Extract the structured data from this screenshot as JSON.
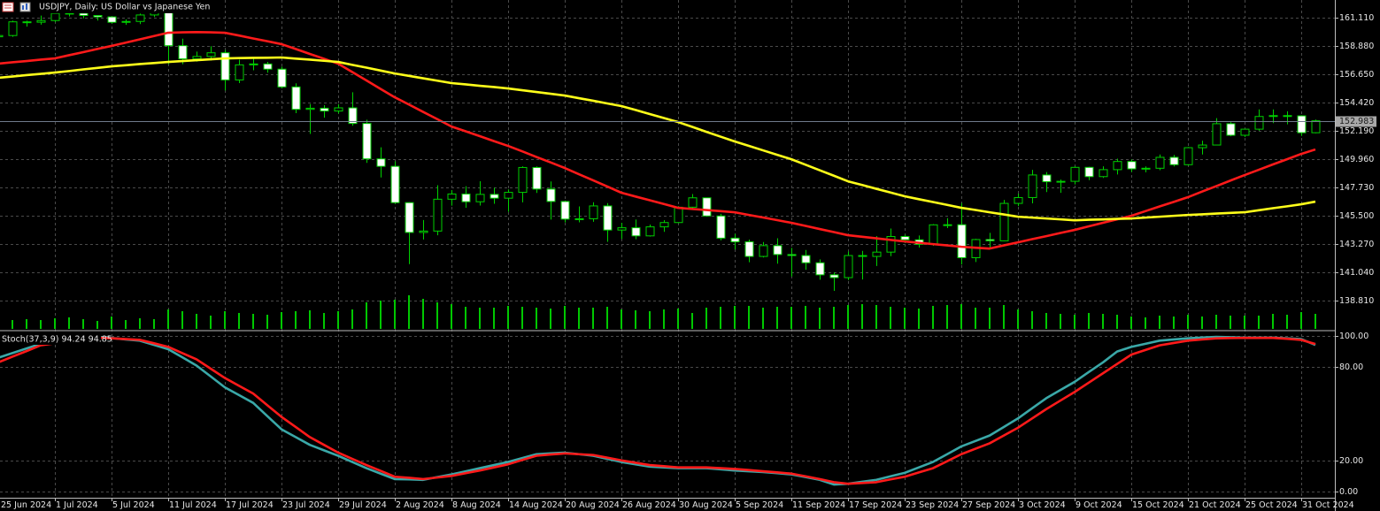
{
  "chart_data": [
    {
      "type": "candlestick",
      "title": "USDJPY, Daily:  US Dollar vs Japanese Yen",
      "categories": [
        "25 Jun 2024",
        null,
        null,
        null,
        "1 Jul 2024",
        null,
        null,
        null,
        "5 Jul 2024",
        null,
        null,
        null,
        "11 Jul 2024",
        null,
        null,
        null,
        "17 Jul 2024",
        null,
        null,
        null,
        "23 Jul 2024",
        null,
        null,
        null,
        "29 Jul 2024",
        null,
        null,
        null,
        "2 Aug 2024",
        null,
        null,
        null,
        "8 Aug 2024",
        null,
        null,
        null,
        "14 Aug 2024",
        null,
        null,
        null,
        "20 Aug 2024",
        null,
        null,
        null,
        "26 Aug 2024",
        null,
        null,
        null,
        "30 Aug 2024",
        null,
        null,
        null,
        "5 Sep 2024",
        null,
        null,
        null,
        "11 Sep 2024",
        null,
        null,
        null,
        "17 Sep 2024",
        null,
        null,
        null,
        "23 Sep 2024",
        null,
        null,
        null,
        "27 Sep 2024",
        null,
        null,
        null,
        "3 Oct 2024",
        null,
        null,
        null,
        "9 Oct 2024",
        null,
        null,
        null,
        "15 Oct 2024",
        null,
        null,
        null,
        "21 Oct 2024",
        null,
        null,
        null,
        "25 Oct 2024",
        null,
        null,
        null,
        "31 Oct 2024",
        null
      ],
      "open": [
        159.6,
        159.7,
        160.78,
        160.75,
        160.88,
        161.45,
        161.46,
        161.28,
        161.17,
        160.74,
        160.81,
        161.32,
        161.67,
        158.9,
        157.86,
        158.05,
        158.34,
        156.2,
        157.39,
        157.46,
        157.05,
        155.65,
        153.88,
        153.97,
        153.75,
        154.0,
        152.77,
        149.98,
        149.39,
        146.53,
        144.18,
        144.29,
        146.8,
        147.21,
        146.6,
        147.18,
        146.88,
        147.34,
        149.3,
        147.6,
        146.62,
        145.23,
        145.26,
        146.27,
        144.37,
        144.55,
        143.91,
        144.62,
        144.96,
        146.17,
        146.91,
        145.48,
        143.73,
        143.44,
        142.29,
        143.14,
        142.44,
        142.36,
        141.79,
        140.84,
        140.62,
        142.36,
        142.29,
        142.63,
        143.86,
        143.6,
        143.24,
        144.78,
        144.79,
        142.19,
        143.62,
        143.52,
        146.47,
        146.93,
        148.71,
        148.18,
        148.21,
        149.31,
        148.58,
        149.13,
        149.77,
        149.19,
        149.24,
        150.1,
        149.52,
        150.86,
        151.07,
        152.75,
        151.84,
        152.32,
        153.32,
        153.39,
        153.37,
        152.04
      ],
      "high": [
        159.95,
        160.87,
        160.87,
        161.27,
        161.72,
        161.74,
        161.75,
        161.3,
        161.21,
        160.98,
        161.43,
        161.95,
        161.8,
        159.45,
        158.43,
        158.86,
        158.56,
        157.8,
        157.87,
        157.62,
        157.25,
        155.93,
        154.3,
        154.21,
        154.29,
        155.23,
        153.07,
        150.89,
        149.78,
        146.56,
        145.16,
        147.9,
        147.52,
        147.82,
        148.22,
        147.7,
        147.57,
        149.39,
        149.38,
        148.2,
        146.69,
        146.23,
        146.56,
        146.49,
        144.94,
        145.2,
        144.8,
        145.15,
        146.26,
        147.21,
        146.93,
        145.65,
        144.07,
        143.62,
        143.43,
        143.72,
        142.96,
        142.8,
        142.06,
        141.03,
        142.68,
        142.73,
        143.9,
        144.49,
        144.0,
        143.94,
        144.84,
        145.31,
        146.49,
        143.68,
        144.15,
        146.74,
        147.24,
        149.11,
        148.94,
        148.35,
        149.4,
        149.36,
        149.39,
        149.99,
        149.93,
        149.38,
        150.32,
        150.29,
        150.92,
        151.41,
        153.19,
        152.88,
        152.36,
        153.88,
        153.88,
        153.73,
        153.42,
        153.08
      ],
      "low": [
        159.26,
        159.6,
        160.4,
        160.56,
        160.77,
        161.2,
        161.05,
        160.88,
        160.64,
        160.54,
        160.6,
        161.16,
        157.44,
        157.44,
        157.64,
        157.73,
        155.37,
        155.95,
        156.96,
        156.77,
        155.53,
        153.58,
        151.94,
        153.22,
        153.56,
        152.59,
        149.66,
        148.51,
        146.43,
        141.68,
        143.63,
        143.96,
        146.29,
        146.13,
        146.3,
        146.44,
        145.8,
        146.55,
        147.29,
        145.19,
        144.97,
        144.98,
        145.02,
        143.44,
        143.67,
        143.64,
        143.85,
        144.23,
        144.91,
        145.95,
        145.42,
        143.56,
        142.84,
        141.83,
        142.21,
        141.72,
        140.71,
        141.24,
        140.46,
        139.58,
        140.43,
        140.47,
        141.54,
        142.31,
        143.34,
        142.99,
        143.13,
        144.52,
        141.65,
        141.85,
        142.99,
        143.5,
        146.26,
        146.47,
        147.36,
        147.3,
        147.96,
        148.3,
        148.48,
        148.75,
        148.95,
        148.92,
        149.09,
        149.38,
        149.45,
        150.32,
        151.07,
        151.76,
        151.7,
        152.2,
        152.8,
        152.7,
        151.79,
        152.0
      ],
      "close": [
        159.7,
        160.78,
        160.75,
        160.88,
        161.45,
        161.46,
        161.28,
        161.17,
        160.74,
        160.81,
        161.32,
        161.67,
        158.9,
        157.86,
        158.05,
        158.34,
        156.2,
        157.39,
        157.46,
        157.05,
        155.65,
        153.88,
        153.97,
        153.75,
        154.0,
        152.77,
        149.98,
        149.39,
        146.53,
        144.18,
        144.29,
        146.8,
        147.21,
        146.6,
        147.18,
        146.88,
        147.34,
        149.3,
        147.6,
        146.62,
        145.23,
        145.26,
        146.27,
        144.37,
        144.55,
        143.91,
        144.62,
        144.96,
        146.17,
        146.91,
        145.48,
        143.73,
        143.44,
        142.29,
        143.14,
        142.44,
        142.36,
        141.79,
        140.84,
        140.62,
        142.36,
        142.29,
        142.63,
        143.86,
        143.6,
        143.24,
        144.78,
        144.79,
        142.19,
        143.62,
        143.52,
        146.47,
        146.93,
        148.71,
        148.18,
        148.21,
        149.31,
        148.58,
        149.13,
        149.77,
        149.19,
        149.24,
        150.1,
        149.52,
        150.86,
        151.07,
        152.75,
        151.84,
        152.32,
        153.32,
        153.39,
        153.37,
        152.04,
        152.98
      ],
      "color": "#00d000",
      "up_color": "#000000",
      "down_color": "#ffffff",
      "series": [
        {
          "color": "#ff1a1a",
          "values": [
            157.48,
            157.59,
            157.69,
            157.8,
            157.9,
            158.15,
            158.39,
            158.64,
            158.88,
            159.14,
            159.4,
            159.66,
            159.92,
            159.95,
            159.97,
            159.95,
            159.92,
            159.7,
            159.47,
            159.25,
            159.02,
            158.64,
            158.25,
            157.87,
            157.48,
            156.82,
            156.16,
            155.49,
            154.83,
            154.26,
            153.68,
            153.11,
            152.53,
            152.15,
            151.77,
            151.38,
            151.0,
            150.57,
            150.13,
            149.7,
            149.26,
            148.77,
            148.29,
            147.8,
            147.31,
            147.01,
            146.72,
            146.42,
            146.12,
            146.03,
            145.95,
            145.86,
            145.77,
            145.56,
            145.36,
            145.15,
            144.94,
            144.7,
            144.45,
            144.21,
            143.96,
            143.84,
            143.72,
            143.59,
            143.47,
            143.37,
            143.26,
            143.16,
            143.05,
            142.98,
            142.91,
            143.16,
            143.4,
            143.65,
            143.89,
            144.14,
            144.38,
            144.66,
            144.94,
            145.21,
            145.49,
            145.86,
            146.23,
            146.59,
            146.96,
            147.4,
            147.83,
            148.27,
            148.7,
            149.12,
            149.54,
            149.95,
            150.37,
            150.72
          ]
        },
        {
          "color": "#ffff1a",
          "values": [
            156.37,
            156.47,
            156.58,
            156.68,
            156.78,
            156.9,
            157.03,
            157.15,
            157.27,
            157.36,
            157.45,
            157.53,
            157.62,
            157.69,
            157.76,
            157.83,
            157.9,
            157.92,
            157.94,
            157.95,
            157.97,
            157.88,
            157.8,
            157.71,
            157.62,
            157.39,
            157.17,
            156.94,
            156.71,
            156.52,
            156.33,
            156.14,
            155.95,
            155.85,
            155.74,
            155.64,
            155.53,
            155.39,
            155.25,
            155.11,
            154.97,
            154.76,
            154.56,
            154.35,
            154.14,
            153.83,
            153.51,
            153.2,
            152.88,
            152.5,
            152.11,
            151.73,
            151.35,
            151.0,
            150.65,
            150.3,
            149.95,
            149.52,
            149.08,
            148.65,
            148.21,
            147.92,
            147.62,
            147.33,
            147.03,
            146.8,
            146.58,
            146.35,
            146.12,
            145.95,
            145.77,
            145.6,
            145.42,
            145.35,
            145.28,
            145.21,
            145.14,
            145.18,
            145.21,
            145.25,
            145.28,
            145.35,
            145.42,
            145.49,
            145.56,
            145.61,
            145.67,
            145.72,
            145.77,
            145.93,
            146.09,
            146.24,
            146.4,
            146.61
          ]
        }
      ],
      "volume": {
        "color": "#00c800",
        "ylim": [
          0,
          372
        ],
        "values": [
          12,
          10,
          11,
          10,
          12,
          13,
          11,
          9,
          14,
          10,
          12,
          11,
          22,
          20,
          17,
          15,
          20,
          18,
          17,
          16,
          19,
          20,
          21,
          18,
          20,
          22,
          30,
          32,
          33,
          38,
          34,
          30,
          28,
          25,
          24,
          24,
          26,
          25,
          24,
          23,
          26,
          24,
          24,
          25,
          22,
          21,
          20,
          22,
          23,
          18,
          24,
          25,
          26,
          26,
          24,
          25,
          25,
          26,
          24,
          25,
          27,
          28,
          27,
          25,
          24,
          23,
          26,
          27,
          28,
          24,
          24,
          27,
          22,
          20,
          18,
          17,
          16,
          18,
          17,
          16,
          14,
          13,
          15,
          14,
          16,
          14,
          16,
          15,
          15,
          15,
          17,
          16,
          19,
          17
        ]
      },
      "last_price": 152.983,
      "ylim": [
        136.58,
        162.5
      ],
      "yticks": [
        {
          "value": 161.11,
          "label": "161.110"
        },
        {
          "value": 158.88,
          "label": "158.880"
        },
        {
          "value": 156.65,
          "label": "156.650"
        },
        {
          "value": 154.42,
          "label": "154.420"
        },
        {
          "value": 152.19,
          "label": "152.190"
        },
        {
          "value": 149.96,
          "label": "149.960"
        },
        {
          "value": 147.73,
          "label": "147.730"
        },
        {
          "value": 145.5,
          "label": "145.500"
        },
        {
          "value": 143.27,
          "label": "143.270"
        },
        {
          "value": 141.04,
          "label": "141.040"
        },
        {
          "value": 138.81,
          "label": "138.810"
        }
      ],
      "grid": true
    },
    {
      "type": "line",
      "title": "Stoch(37,3,9)",
      "series": [
        {
          "color": "#3aa8a8",
          "values": [
            86,
            89,
            92,
            95,
            96.1,
            97.3,
            98.4,
            99.5,
            98.7,
            97.8,
            97,
            94.3,
            91.5,
            86.3,
            81,
            74,
            67,
            62,
            57,
            48.5,
            40,
            35,
            30,
            26.5,
            23,
            19,
            15,
            11.5,
            8,
            7.8,
            7.5,
            9.3,
            11,
            13,
            15,
            17,
            19,
            21.5,
            24,
            24.5,
            25,
            24,
            23,
            21,
            19,
            17.5,
            16,
            15.5,
            15,
            15,
            15,
            14.3,
            13.5,
            13,
            12.5,
            11.8,
            11,
            9.3,
            7.5,
            4.5,
            5,
            6.3,
            7.5,
            9.8,
            12,
            15.5,
            19,
            24,
            29,
            32.5,
            36,
            41.5,
            47,
            53.5,
            60,
            65.3,
            70.5,
            76.8,
            83,
            90,
            93,
            95,
            97,
            97.8,
            98.5,
            99,
            99.4,
            99.2,
            98.9,
            98.9,
            98.9,
            98.5,
            98,
            94.24
          ]
        },
        {
          "color": "#ff1a1a",
          "values": [
            83,
            86.7,
            90.3,
            94,
            95.3,
            96.5,
            97.8,
            99,
            98.5,
            98,
            97.5,
            95.3,
            93,
            89,
            85,
            79,
            73,
            68,
            63,
            55.5,
            48,
            41.5,
            35,
            30,
            25,
            21,
            17,
            13.3,
            9.5,
            8.8,
            8,
            9,
            10,
            11.8,
            13.5,
            15.5,
            17.5,
            20.3,
            23,
            23.8,
            24.5,
            24,
            23.5,
            21.8,
            20,
            18.5,
            17,
            16.3,
            15.5,
            15.5,
            15.5,
            15,
            14.5,
            13.8,
            13,
            12.3,
            11.5,
            9.8,
            8,
            6,
            5,
            5.5,
            6,
            7.8,
            9.5,
            12.3,
            15,
            19.5,
            24,
            27.5,
            31,
            36,
            41,
            47,
            53,
            58.5,
            64,
            70,
            76,
            82,
            88,
            91,
            94,
            95.5,
            97,
            97.8,
            98.5,
            98.7,
            98.8,
            98.8,
            98.8,
            98.2,
            97.5,
            94.85
          ]
        }
      ],
      "ylim": [
        -4,
        102.3
      ],
      "yticks": [
        {
          "value": 100,
          "label": "100.00"
        },
        {
          "value": 80,
          "label": "80.00"
        },
        {
          "value": 20,
          "label": "20.00"
        },
        {
          "value": 0,
          "label": "0.00"
        }
      ],
      "grid": true
    }
  ]
}
